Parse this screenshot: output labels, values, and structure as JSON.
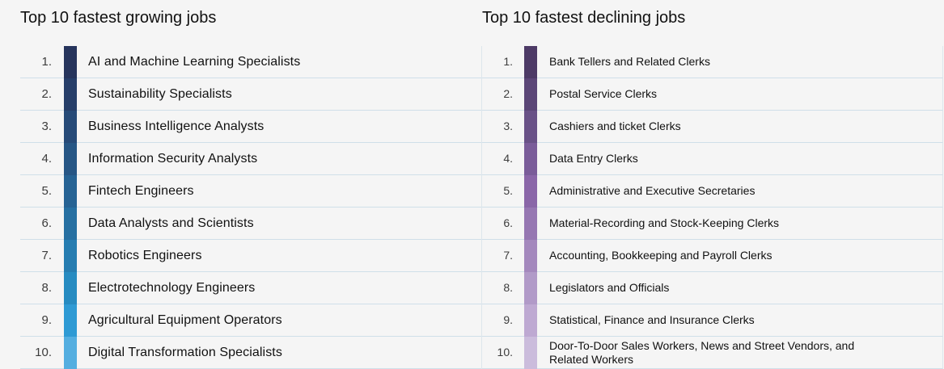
{
  "growing": {
    "title": "Top 10 fastest growing jobs",
    "items": [
      {
        "rank": "1.",
        "label": "AI and Machine Learning Specialists",
        "color": "#26345c"
      },
      {
        "rank": "2.",
        "label": "Sustainability Specialists",
        "color": "#263e69"
      },
      {
        "rank": "3.",
        "label": "Business Intelligence Analysts",
        "color": "#264a78"
      },
      {
        "rank": "4.",
        "label": "Information Security Analysts",
        "color": "#265685"
      },
      {
        "rank": "5.",
        "label": "Fintech Engineers",
        "color": "#266394"
      },
      {
        "rank": "6.",
        "label": "Data Analysts and Scientists",
        "color": "#2670a2"
      },
      {
        "rank": "7.",
        "label": "Robotics Engineers",
        "color": "#267db1"
      },
      {
        "rank": "8.",
        "label": "Electrotechnology Engineers",
        "color": "#268bc1"
      },
      {
        "rank": "9.",
        "label": "Agricultural Equipment Operators",
        "color": "#2e9ad4"
      },
      {
        "rank": "10.",
        "label": "Digital Transformation Specialists",
        "color": "#54aee0"
      }
    ]
  },
  "declining": {
    "title": "Top 10 fastest declining jobs",
    "items": [
      {
        "rank": "1.",
        "label": "Bank Tellers and Related Clerks",
        "color": "#4d3a66"
      },
      {
        "rank": "2.",
        "label": "Postal Service Clerks",
        "color": "#5b4677"
      },
      {
        "rank": "3.",
        "label": "Cashiers and ticket Clerks",
        "color": "#695187"
      },
      {
        "rank": "4.",
        "label": "Data Entry Clerks",
        "color": "#7a5c99"
      },
      {
        "rank": "5.",
        "label": "Administrative and Executive Secretaries",
        "color": "#8a66a8"
      },
      {
        "rank": "6.",
        "label": "Material-Recording and Stock-Keeping Clerks",
        "color": "#9677b2"
      },
      {
        "rank": "7.",
        "label": "Accounting, Bookkeeping and Payroll Clerks",
        "color": "#a488bd"
      },
      {
        "rank": "8.",
        "label": "Legislators and Officials",
        "color": "#b19ac8"
      },
      {
        "rank": "9.",
        "label": "Statistical, Finance and Insurance Clerks",
        "color": "#bea9d2"
      },
      {
        "rank": "10.",
        "label": "Door-To-Door Sales Workers, News and Street Vendors, and Related Workers",
        "color": "#cbbcdc"
      }
    ]
  }
}
